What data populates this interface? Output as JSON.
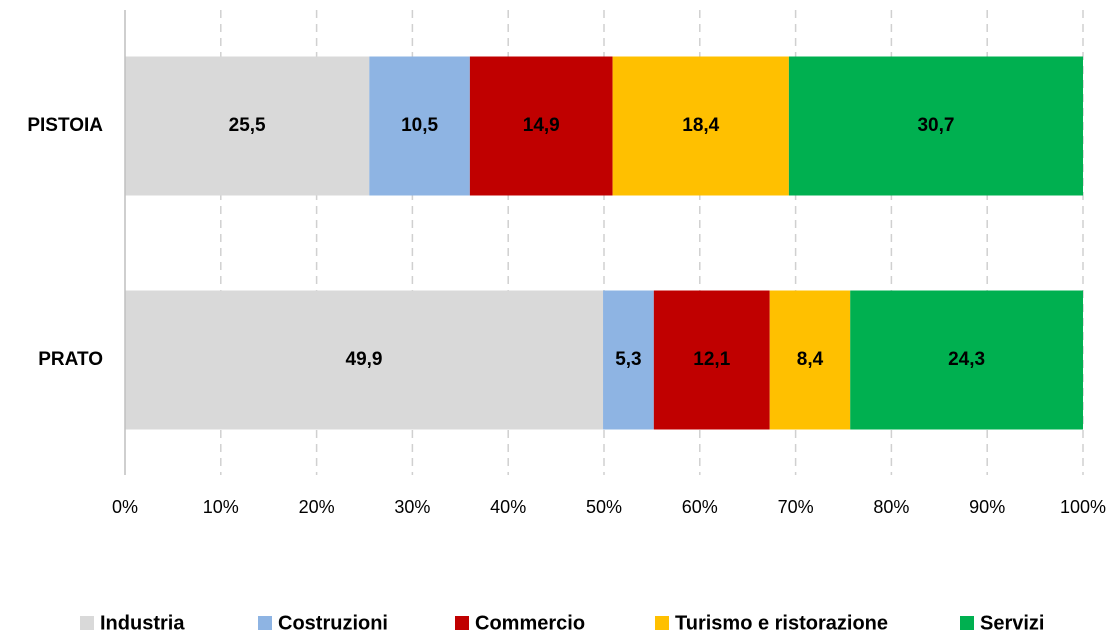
{
  "chart_data": {
    "type": "stacked_bar_horizontal",
    "categories": [
      "PISTOIA",
      "PRATO"
    ],
    "series": [
      {
        "name": "Industria",
        "color": "#d9d9d9",
        "values": [
          25.5,
          49.9
        ],
        "value_labels": [
          "25,5",
          "49,9"
        ]
      },
      {
        "name": "Costruzioni",
        "color": "#8eb4e3",
        "values": [
          10.5,
          5.3
        ],
        "value_labels": [
          "10,5",
          "5,3"
        ]
      },
      {
        "name": "Commercio",
        "color": "#c00000",
        "values": [
          14.9,
          12.1
        ],
        "value_labels": [
          "14,9",
          "12,1"
        ]
      },
      {
        "name": "Turismo e ristorazione",
        "color": "#ffc000",
        "values": [
          18.4,
          8.4
        ],
        "value_labels": [
          "18,4",
          "8,4"
        ]
      },
      {
        "name": "Servizi",
        "color": "#00b050",
        "values": [
          30.7,
          24.3
        ],
        "value_labels": [
          "30,7",
          "24,3"
        ]
      }
    ],
    "xlim": [
      0,
      100
    ],
    "xticks": [
      {
        "value": 0,
        "label": "0%"
      },
      {
        "value": 10,
        "label": "10%"
      },
      {
        "value": 20,
        "label": "20%"
      },
      {
        "value": 30,
        "label": "30%"
      },
      {
        "value": 40,
        "label": "40%"
      },
      {
        "value": 50,
        "label": "50%"
      },
      {
        "value": 60,
        "label": "60%"
      },
      {
        "value": 70,
        "label": "70%"
      },
      {
        "value": 80,
        "label": "80%"
      },
      {
        "value": 90,
        "label": "90%"
      },
      {
        "value": 100,
        "label": "100%"
      }
    ],
    "grid": true,
    "legend": "bottom"
  }
}
